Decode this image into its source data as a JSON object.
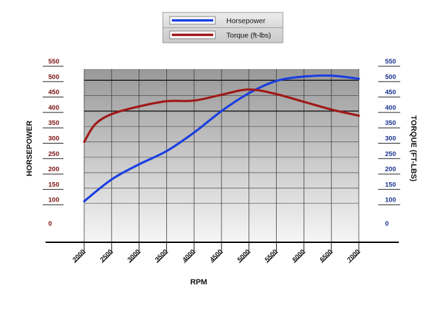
{
  "chart_data": {
    "type": "line",
    "title": "",
    "xlabel": "RPM",
    "ylabel_left": "HORSEPOWER",
    "ylabel_right": "TORQUE (FT-LBS)",
    "x_ticks": [
      "2000",
      "2500",
      "3000",
      "3500",
      "4000",
      "4500",
      "5000",
      "5500",
      "6000",
      "6500",
      "7000"
    ],
    "y_ticks": [
      "0",
      "100",
      "150",
      "200",
      "250",
      "300",
      "350",
      "400",
      "450",
      "500",
      "550"
    ],
    "grid": true,
    "legend_position": "top-center",
    "series": [
      {
        "name": "Horsepower",
        "axis": "left",
        "color": "#1a3fe0",
        "x": [
          2000,
          2500,
          3000,
          3500,
          4000,
          4500,
          5000,
          5500,
          6000,
          6500,
          7000
        ],
        "y": [
          107,
          178,
          227,
          270,
          330,
          400,
          458,
          498,
          512,
          515,
          505
        ]
      },
      {
        "name": "Torque (ft-lbs)",
        "axis": "right",
        "color": "#a01818",
        "x": [
          2000,
          2200,
          2500,
          3000,
          3500,
          4000,
          4500,
          5000,
          5500,
          6000,
          6500,
          7000
        ],
        "y": [
          300,
          357,
          390,
          415,
          432,
          434,
          453,
          470,
          455,
          430,
          405,
          385
        ]
      }
    ]
  }
}
